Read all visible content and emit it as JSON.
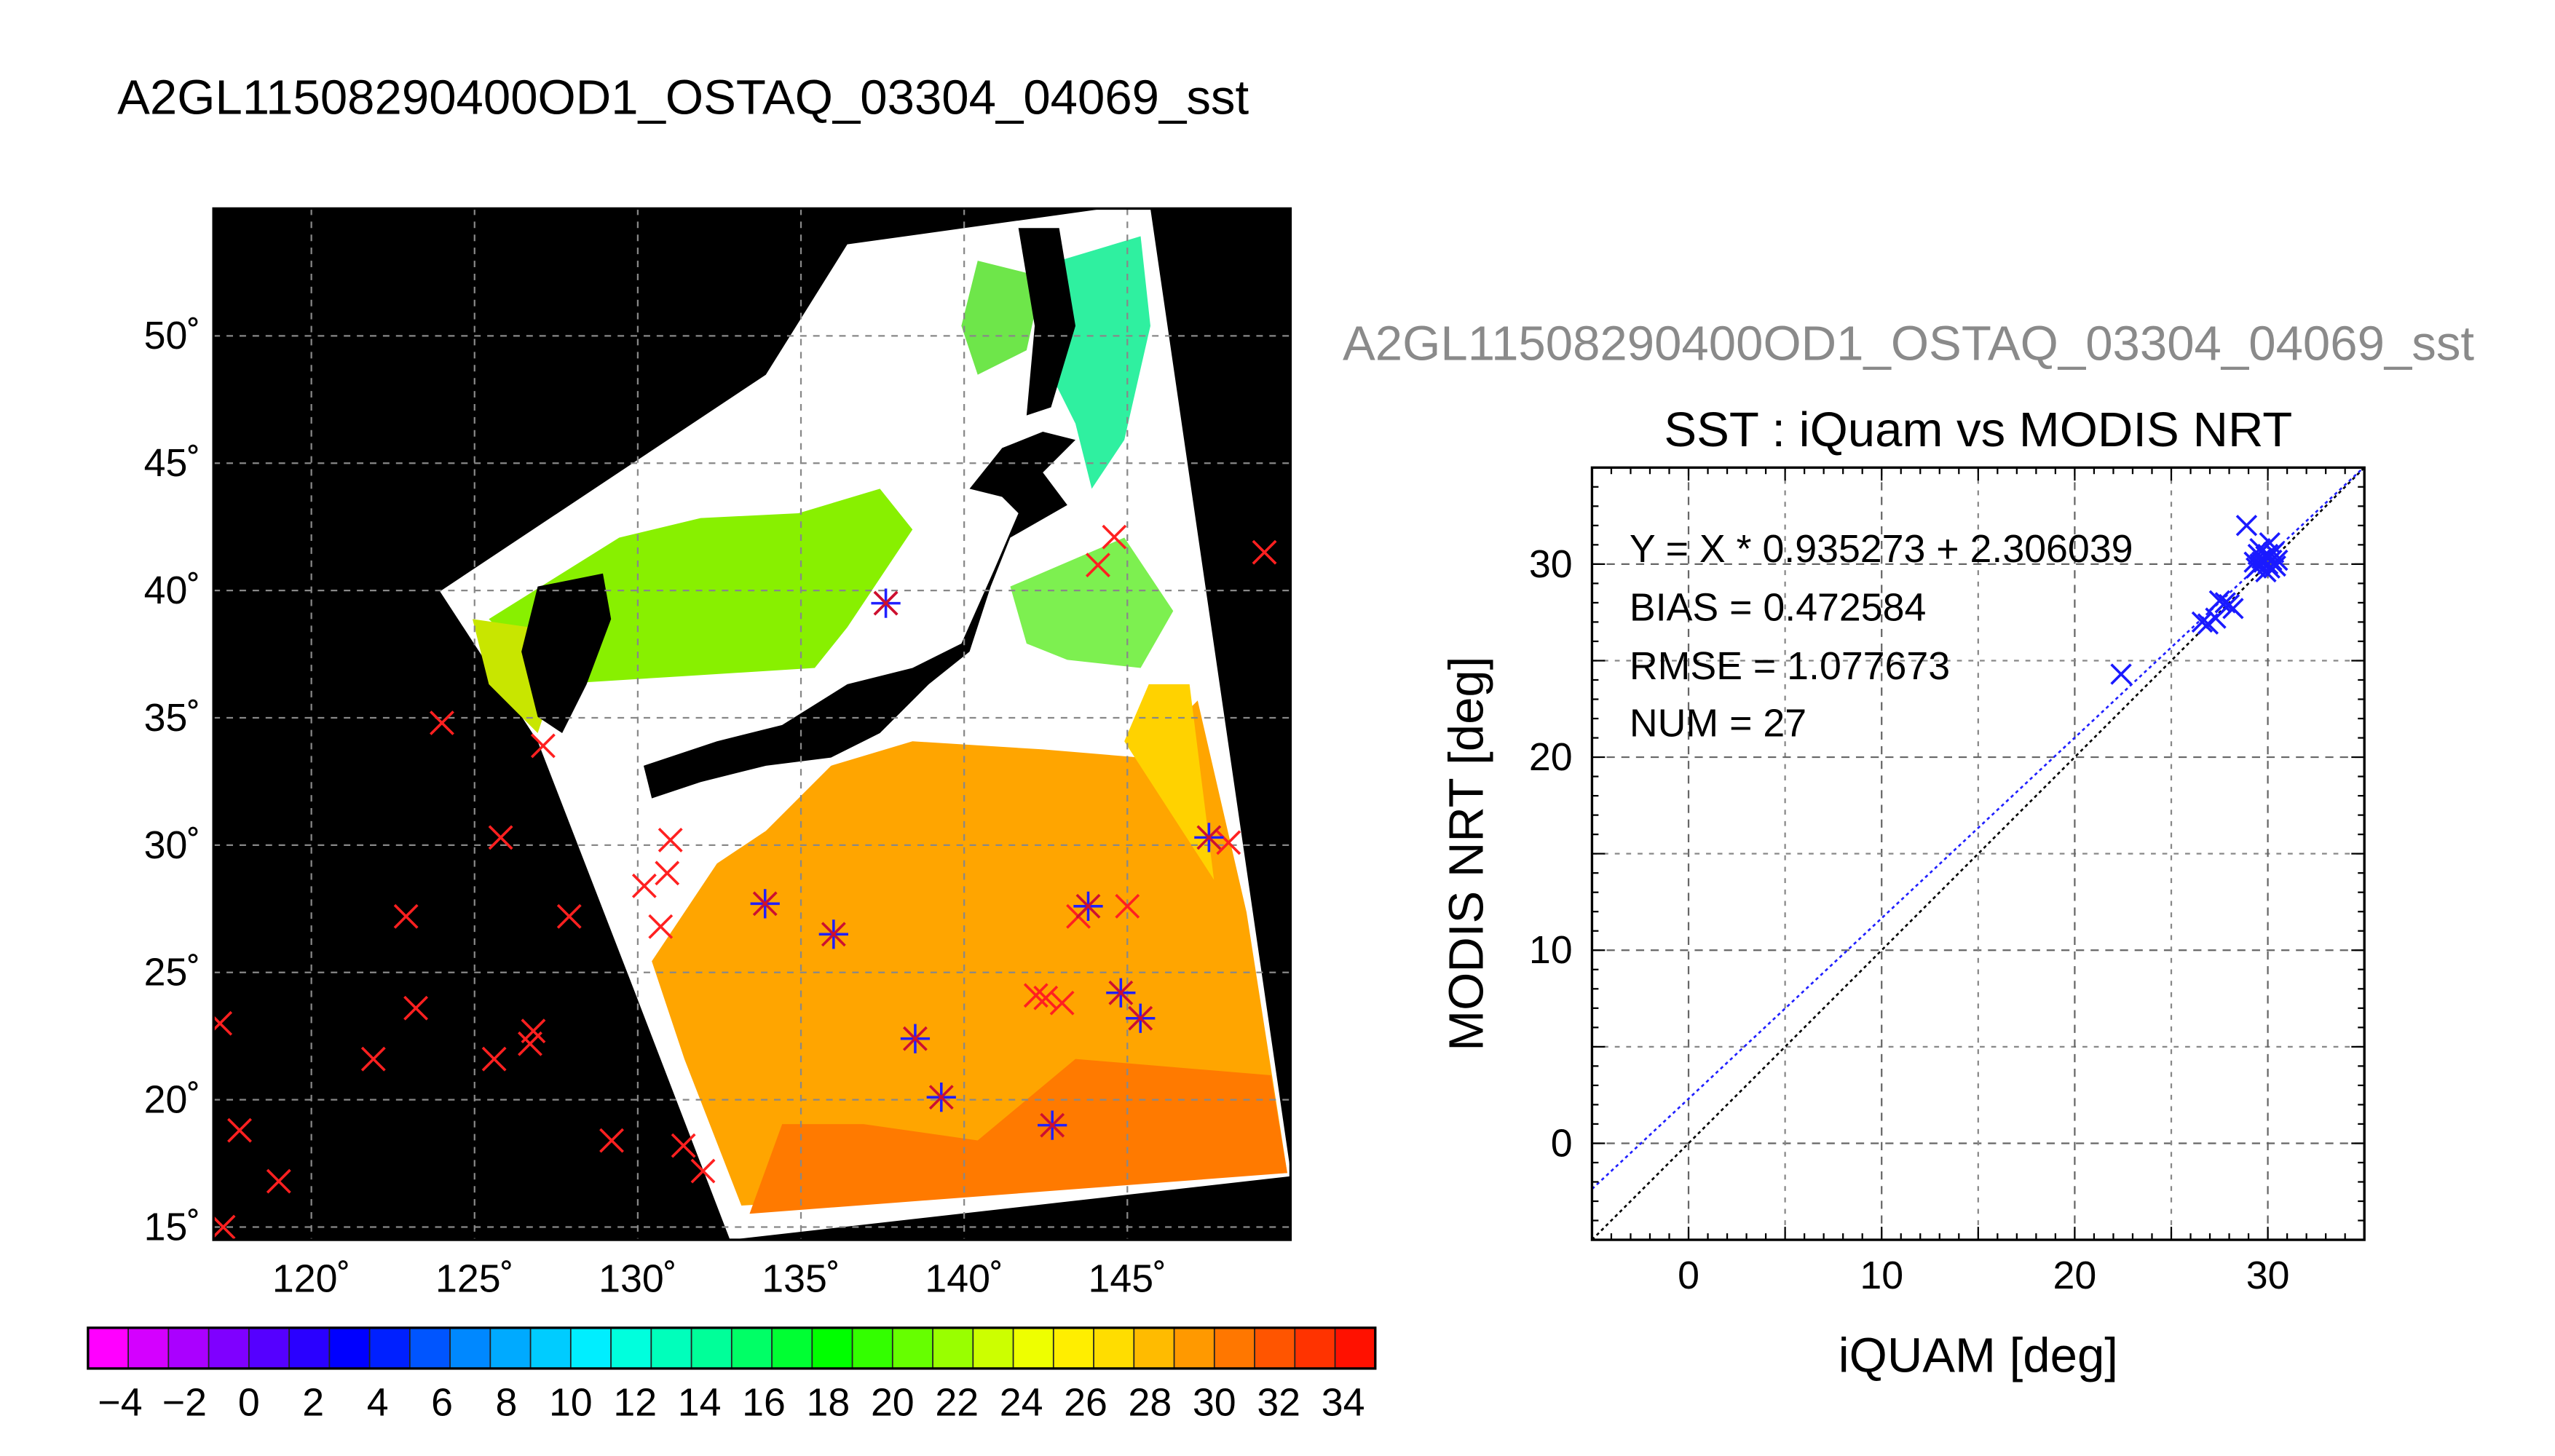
{
  "page_title": "A2GL11508290400OD1_OSTAQ_03304_04069_sst",
  "scatter_overlay_title": "A2GL11508290400OD1_OSTAQ_03304_04069_sst",
  "chart_data": [
    {
      "type": "heatmap",
      "lon_ticks": [
        "120˚",
        "125˚",
        "130˚",
        "135˚",
        "140˚",
        "145˚"
      ],
      "lat_ticks": [
        "15˚",
        "20˚",
        "25˚",
        "30˚",
        "35˚",
        "40˚",
        "45˚",
        "50˚"
      ],
      "lon_range": [
        117,
        150
      ],
      "lat_range": [
        14.5,
        55
      ],
      "grid": true,
      "colorbar": {
        "labels": [
          "−4",
          "−2",
          "0",
          "2",
          "4",
          "6",
          "8",
          "10",
          "12",
          "14",
          "16",
          "18",
          "20",
          "22",
          "24",
          "26",
          "28",
          "30",
          "32",
          "34"
        ],
        "range": [
          -5,
          35
        ],
        "colors": [
          "#ff00ff",
          "#d400ff",
          "#aa00ff",
          "#7f00ff",
          "#5500ff",
          "#2a00ff",
          "#0000ff",
          "#0020ff",
          "#0055ff",
          "#0088ff",
          "#00aaff",
          "#00ccff",
          "#00eeff",
          "#00ffdd",
          "#00ffbb",
          "#00ff99",
          "#00ff66",
          "#00ff33",
          "#00ff00",
          "#33ff00",
          "#66ff00",
          "#99ff00",
          "#ccff00",
          "#eeff00",
          "#ffee00",
          "#ffdd00",
          "#ffbb00",
          "#ff9900",
          "#ff7700",
          "#ff5500",
          "#ff3300",
          "#ff1100"
        ]
      },
      "matchups_red": [
        [
          117.2,
          23.0
        ],
        [
          117.8,
          18.8
        ],
        [
          117.3,
          15.0
        ],
        [
          119.0,
          16.8
        ],
        [
          121.9,
          21.6
        ],
        [
          122.9,
          27.2
        ],
        [
          123.2,
          23.6
        ],
        [
          124.0,
          34.8
        ],
        [
          125.6,
          21.6
        ],
        [
          125.8,
          30.3
        ],
        [
          126.7,
          22.2
        ],
        [
          126.8,
          22.7
        ],
        [
          127.1,
          33.9
        ],
        [
          127.9,
          27.2
        ],
        [
          129.2,
          18.4
        ],
        [
          130.2,
          28.4
        ],
        [
          130.7,
          26.8
        ],
        [
          130.9,
          28.9
        ],
        [
          131.0,
          30.2
        ],
        [
          131.4,
          18.2
        ],
        [
          132.0,
          17.2
        ],
        [
          142.2,
          24.1
        ],
        [
          142.5,
          24.0
        ],
        [
          143.0,
          23.8
        ],
        [
          143.5,
          27.2
        ],
        [
          145.0,
          27.6
        ],
        [
          148.1,
          30.1
        ],
        [
          149.2,
          41.5
        ],
        [
          144.1,
          41.0
        ],
        [
          144.6,
          42.1
        ],
        [
          137.6,
          39.5
        ]
      ],
      "matchups_blue": [
        [
          133.9,
          27.7
        ],
        [
          136.0,
          26.5
        ],
        [
          138.5,
          22.4
        ],
        [
          139.3,
          20.1
        ],
        [
          142.7,
          19.0
        ],
        [
          143.8,
          27.6
        ],
        [
          144.8,
          24.2
        ],
        [
          145.4,
          23.2
        ],
        [
          147.5,
          30.3
        ],
        [
          137.6,
          39.5
        ]
      ]
    },
    {
      "type": "scatter",
      "title": "SST : iQuam vs MODIS NRT",
      "xlabel": "iQUAM [deg]",
      "ylabel": "MODIS NRT [deg]",
      "xlim": [
        -5,
        35
      ],
      "ylim": [
        -5,
        35
      ],
      "x_ticks": [
        "0",
        "10",
        "20",
        "30"
      ],
      "y_ticks": [
        "0",
        "10",
        "20",
        "30"
      ],
      "grid": true,
      "stats": {
        "equation": "Y = X * 0.935273 + 2.306039",
        "bias": "BIAS = 0.472584",
        "rmse": "RMSE = 1.077673",
        "num": "NUM = 27"
      },
      "regression": {
        "slope": 0.935273,
        "intercept": 2.306039
      },
      "points": [
        [
          22.4,
          24.3
        ],
        [
          26.6,
          27.0
        ],
        [
          26.9,
          26.9
        ],
        [
          27.3,
          27.2
        ],
        [
          27.5,
          28.1
        ],
        [
          27.8,
          28.0
        ],
        [
          28.0,
          27.9
        ],
        [
          28.2,
          27.7
        ],
        [
          28.9,
          32.0
        ],
        [
          29.3,
          30.1
        ],
        [
          29.5,
          30.5
        ],
        [
          29.6,
          30.0
        ],
        [
          29.7,
          30.3
        ],
        [
          29.8,
          30.1
        ],
        [
          29.9,
          30.4
        ],
        [
          30.0,
          30.0
        ],
        [
          30.1,
          31.1
        ],
        [
          30.2,
          30.2
        ],
        [
          30.3,
          30.6
        ],
        [
          30.4,
          29.9
        ],
        [
          29.4,
          29.8
        ],
        [
          29.6,
          30.8
        ],
        [
          29.9,
          29.6
        ],
        [
          30.5,
          30.2
        ],
        [
          29.7,
          30.1
        ],
        [
          30.1,
          29.8
        ],
        [
          30.0,
          30.5
        ]
      ]
    }
  ]
}
